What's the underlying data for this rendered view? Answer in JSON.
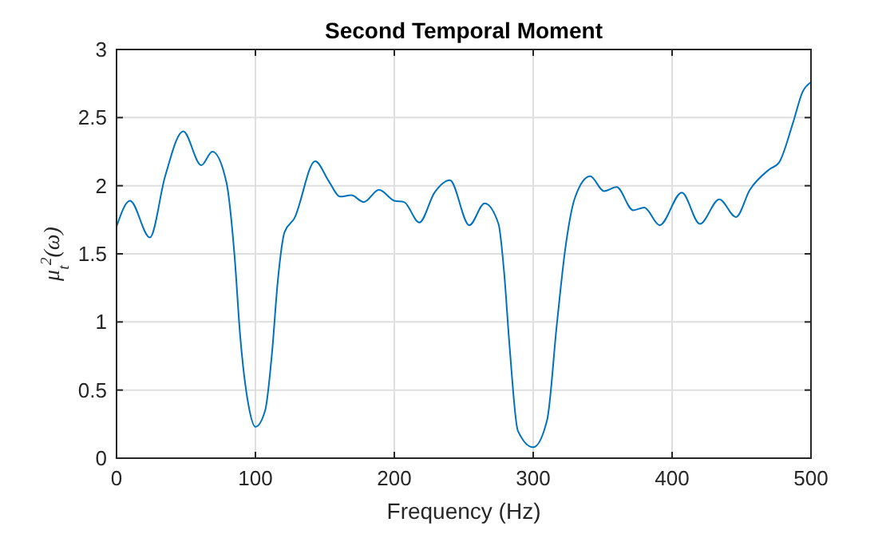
{
  "chart_data": {
    "type": "line",
    "title": "Second Temporal Moment",
    "xlabel": "Frequency (Hz)",
    "ylabel": "μ$_{t}$$^{2}$(ω)",
    "xlim": [
      0,
      500
    ],
    "ylim": [
      0,
      3
    ],
    "xticks": [
      0,
      100,
      200,
      300,
      400,
      500
    ],
    "yticks": [
      0,
      0.5,
      1,
      1.5,
      2,
      2.5,
      3
    ],
    "grid": true,
    "series": [
      {
        "color": "#0072bd",
        "x": [
          0,
          9.7,
          24,
          35,
          48,
          61,
          69,
          79,
          85,
          89,
          95,
          100,
          107,
          112,
          116,
          121,
          128,
          143,
          153,
          161,
          169,
          178,
          189,
          200,
          207,
          218,
          229,
          240,
          254,
          265,
          275,
          279,
          283,
          289,
          300,
          310,
          317,
          323,
          330,
          341,
          351,
          360,
          372,
          380,
          391,
          407,
          420,
          434,
          446,
          456,
          470,
          477,
          487,
          494,
          500
        ],
        "values": [
          1.7,
          1.89,
          1.62,
          2.07,
          2.4,
          2.15,
          2.25,
          2.03,
          1.48,
          0.9,
          0.39,
          0.23,
          0.35,
          0.78,
          1.29,
          1.66,
          1.76,
          2.18,
          2.03,
          1.92,
          1.93,
          1.88,
          1.97,
          1.89,
          1.88,
          1.73,
          1.95,
          2.04,
          1.71,
          1.87,
          1.72,
          1.37,
          0.82,
          0.2,
          0.08,
          0.28,
          0.98,
          1.53,
          1.91,
          2.07,
          1.96,
          1.99,
          1.82,
          1.84,
          1.71,
          1.95,
          1.72,
          1.9,
          1.77,
          1.97,
          2.12,
          2.17,
          2.46,
          2.69,
          2.76
        ]
      }
    ]
  }
}
